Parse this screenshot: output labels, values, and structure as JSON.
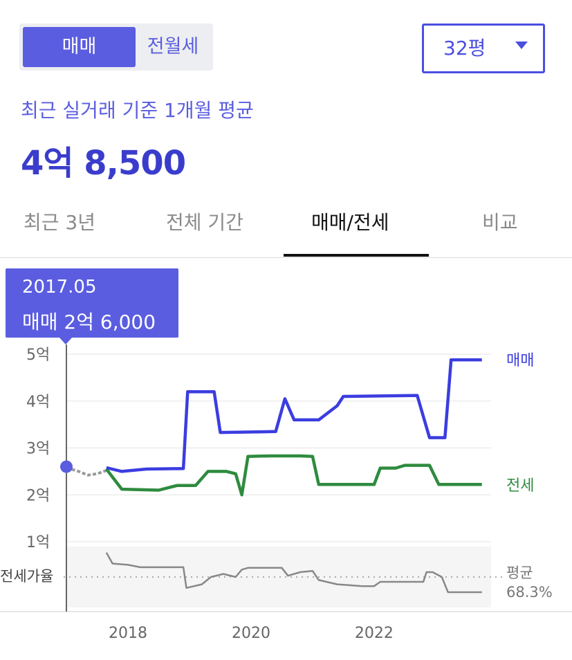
{
  "toggle": {
    "sale_label": "매매",
    "rent_label": "전월세"
  },
  "area_select": {
    "value": "32평"
  },
  "summary": {
    "subtitle": "최근 실거래 기준 1개월 평균",
    "price": "4억 8,500"
  },
  "tabs": [
    {
      "label": "최근 3년"
    },
    {
      "label": "전체 기간"
    },
    {
      "label": "매매/전세",
      "active": true
    },
    {
      "label": "비교"
    }
  ],
  "tooltip": {
    "date": "2017.05",
    "value": "매매 2억 6,000"
  },
  "chart_data": {
    "type": "line",
    "colors": {
      "sale": "#3b3de0",
      "jeonse": "#2e8b3e",
      "history": "#999999",
      "ratio": "#888888",
      "accent": "#5a5de0"
    },
    "y_ticks": [
      "1억",
      "2억",
      "3억",
      "4억",
      "5억"
    ],
    "ylim": [
      1,
      5
    ],
    "x_ticks": [
      "2018",
      "2020",
      "2022"
    ],
    "xlim": [
      2017.0,
      2023.9
    ],
    "series": [
      {
        "name": "매매",
        "points": [
          [
            2017.65,
            2.58
          ],
          [
            2017.9,
            2.5
          ],
          [
            2018.3,
            2.55
          ],
          [
            2018.9,
            2.56
          ],
          [
            2018.97,
            4.2
          ],
          [
            2019.4,
            4.2
          ],
          [
            2019.5,
            3.33
          ],
          [
            2020.4,
            3.35
          ],
          [
            2020.55,
            4.05
          ],
          [
            2020.7,
            3.6
          ],
          [
            2021.1,
            3.6
          ],
          [
            2021.4,
            3.9
          ],
          [
            2021.5,
            4.1
          ],
          [
            2022.7,
            4.12
          ],
          [
            2022.9,
            3.22
          ],
          [
            2023.15,
            3.22
          ],
          [
            2023.25,
            4.88
          ],
          [
            2023.75,
            4.88
          ]
        ]
      },
      {
        "name": "전세",
        "points": [
          [
            2017.65,
            2.55
          ],
          [
            2017.9,
            2.12
          ],
          [
            2018.5,
            2.1
          ],
          [
            2018.8,
            2.2
          ],
          [
            2019.1,
            2.2
          ],
          [
            2019.3,
            2.5
          ],
          [
            2019.6,
            2.5
          ],
          [
            2019.75,
            2.45
          ],
          [
            2019.85,
            2.0
          ],
          [
            2019.95,
            2.82
          ],
          [
            2020.3,
            2.83
          ],
          [
            2020.8,
            2.83
          ],
          [
            2021.0,
            2.82
          ],
          [
            2021.1,
            2.22
          ],
          [
            2021.5,
            2.22
          ],
          [
            2022.0,
            2.22
          ],
          [
            2022.1,
            2.57
          ],
          [
            2022.35,
            2.57
          ],
          [
            2022.5,
            2.63
          ],
          [
            2022.9,
            2.63
          ],
          [
            2023.05,
            2.22
          ],
          [
            2023.75,
            2.22
          ]
        ]
      },
      {
        "name": "history",
        "points": [
          [
            2017.0,
            2.58
          ],
          [
            2017.2,
            2.5
          ],
          [
            2017.35,
            2.42
          ],
          [
            2017.5,
            2.45
          ],
          [
            2017.65,
            2.52
          ]
        ]
      }
    ],
    "ratio": {
      "label": "전세가율",
      "avg_label": "평균",
      "avg_value": "68.3%",
      "points": [
        [
          2017.65,
          0.9
        ],
        [
          2017.75,
          0.72
        ],
        [
          2018.0,
          0.7
        ],
        [
          2018.2,
          0.66
        ],
        [
          2018.9,
          0.66
        ],
        [
          2018.95,
          0.32
        ],
        [
          2019.2,
          0.38
        ],
        [
          2019.35,
          0.5
        ],
        [
          2019.55,
          0.55
        ],
        [
          2019.75,
          0.5
        ],
        [
          2019.85,
          0.62
        ],
        [
          2019.95,
          0.65
        ],
        [
          2020.5,
          0.65
        ],
        [
          2020.6,
          0.52
        ],
        [
          2020.8,
          0.58
        ],
        [
          2021.0,
          0.6
        ],
        [
          2021.1,
          0.45
        ],
        [
          2021.4,
          0.38
        ],
        [
          2021.8,
          0.35
        ],
        [
          2022.0,
          0.35
        ],
        [
          2022.1,
          0.42
        ],
        [
          2022.8,
          0.42
        ],
        [
          2022.85,
          0.58
        ],
        [
          2022.95,
          0.58
        ],
        [
          2023.1,
          0.5
        ],
        [
          2023.2,
          0.25
        ],
        [
          2023.75,
          0.25
        ]
      ],
      "avg": 0.5
    }
  }
}
